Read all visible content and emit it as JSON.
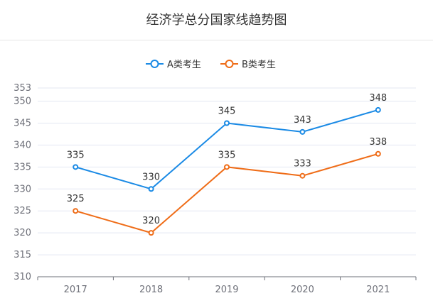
{
  "title": "经济学总分国家线趋势图",
  "colors": {
    "series_a": "#1a8ae5",
    "series_b": "#ef6c17",
    "grid": "#e3e7f2",
    "axis": "#6e7079"
  },
  "chart_data": {
    "type": "line",
    "title": "经济学总分国家线趋势图",
    "categories": [
      "2017",
      "2018",
      "2019",
      "2020",
      "2021"
    ],
    "series": [
      {
        "name": "A类考生",
        "values": [
          335,
          330,
          345,
          343,
          348
        ]
      },
      {
        "name": "B类考生",
        "values": [
          325,
          320,
          335,
          333,
          338
        ]
      }
    ],
    "yticks": [
      310,
      315,
      320,
      325,
      330,
      335,
      340,
      345,
      350,
      353
    ],
    "ylim": [
      310,
      353
    ],
    "grid": true,
    "legend": "top-center",
    "xlabel": "",
    "ylabel": ""
  }
}
